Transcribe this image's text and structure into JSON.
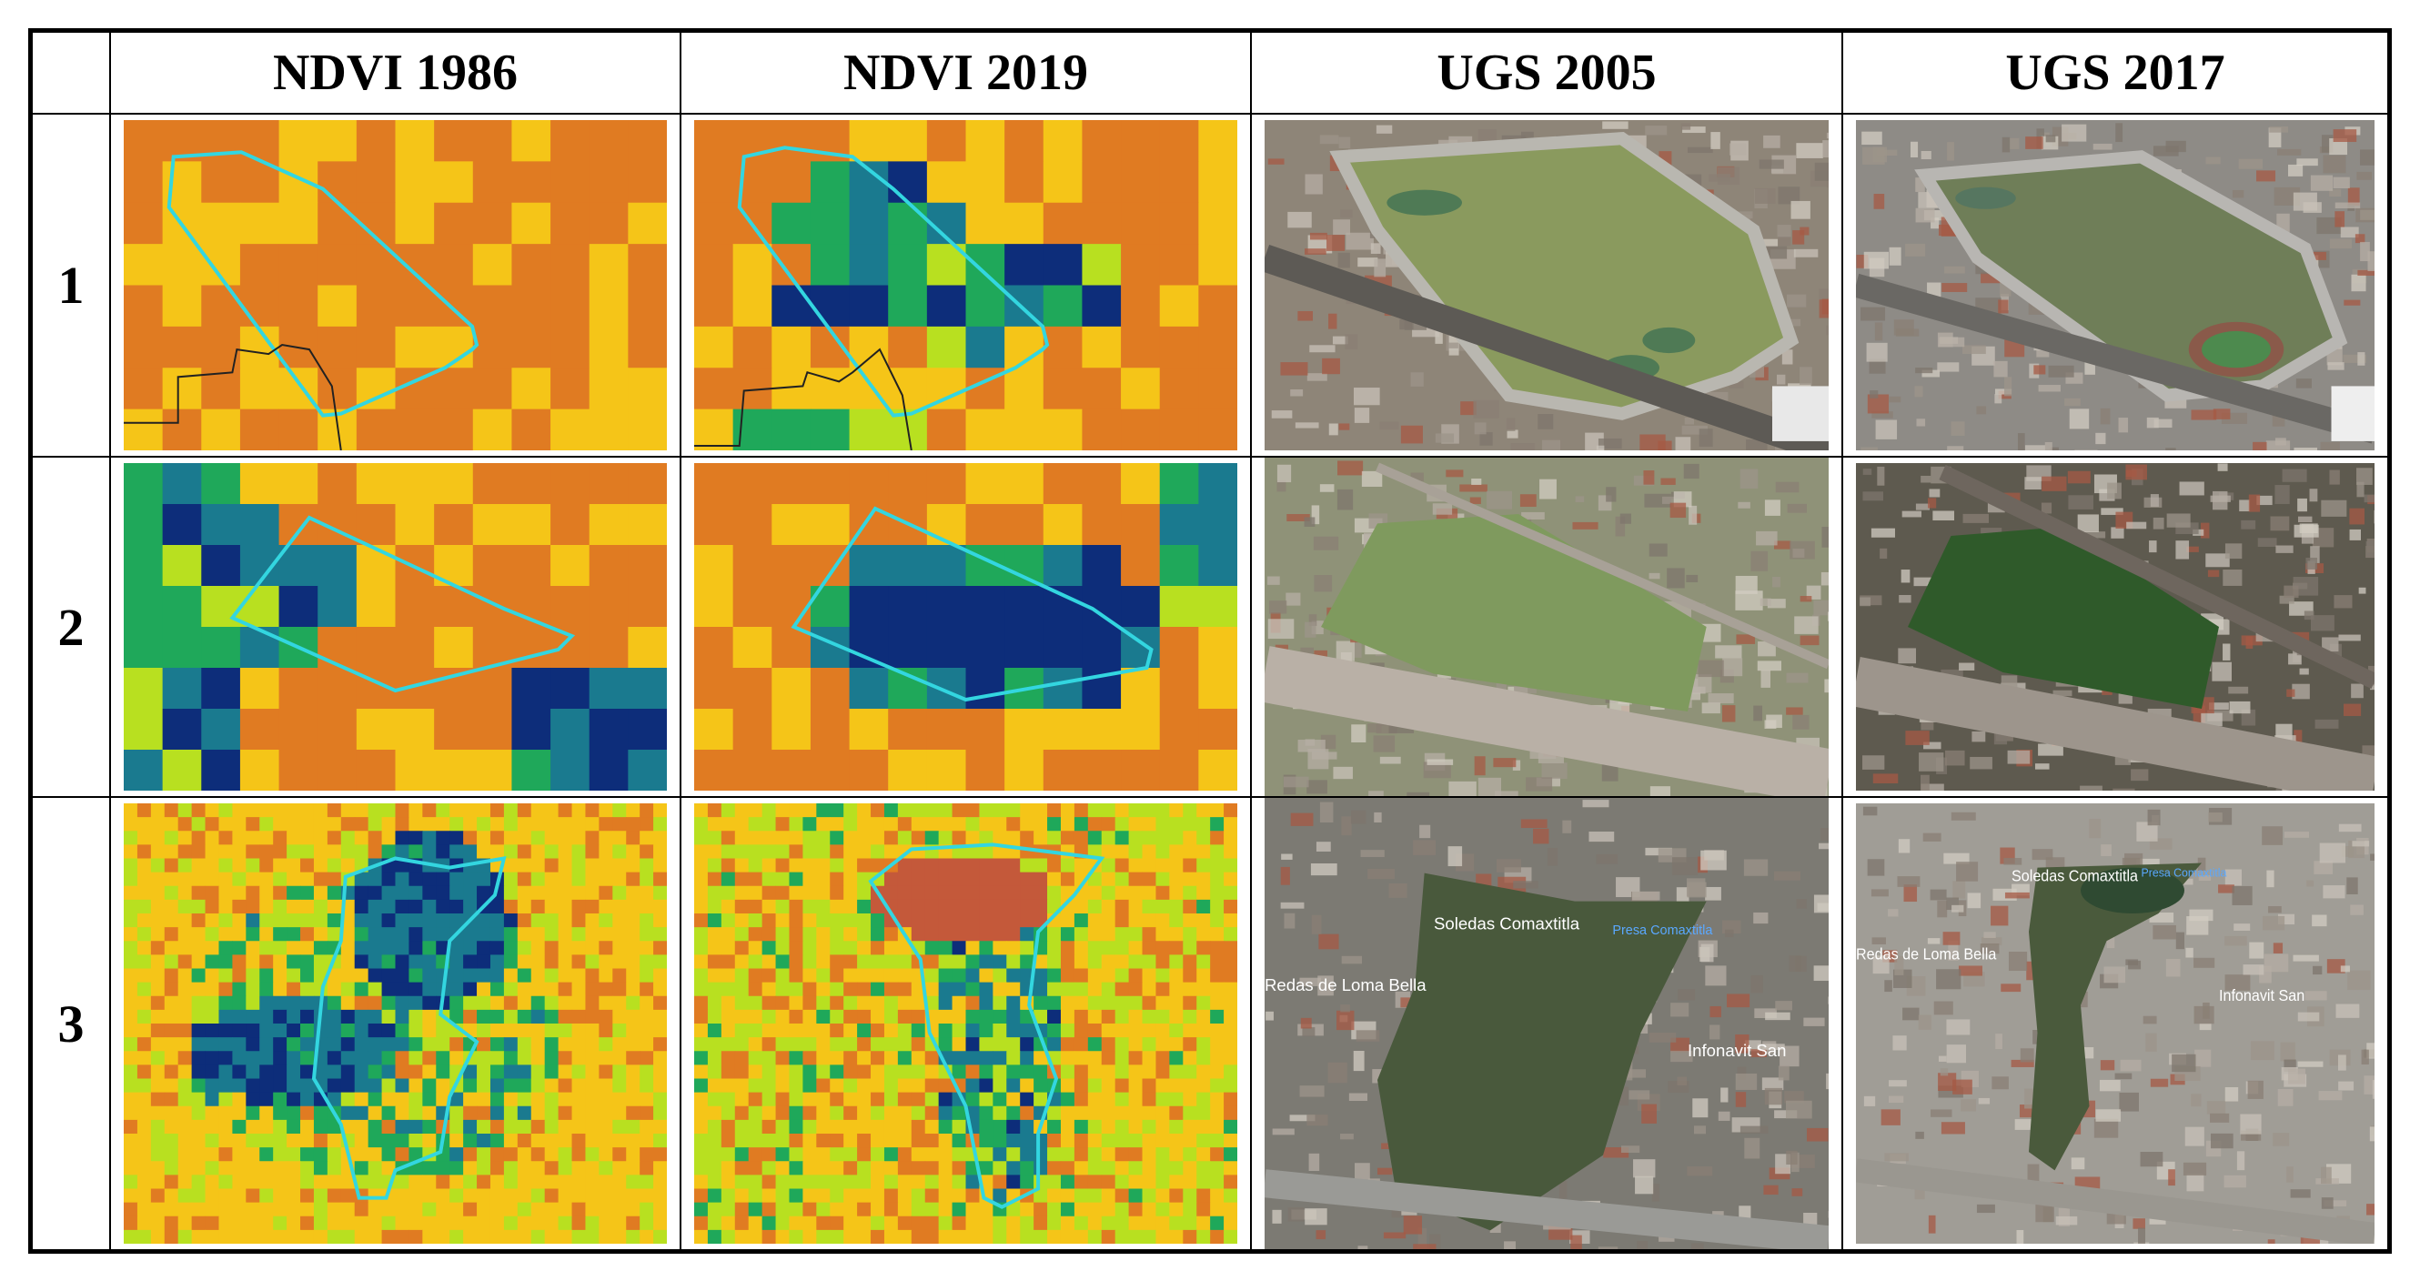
{
  "columns": [
    "NDVI 1986",
    "NDVI 2019",
    "UGS 2005",
    "UGS 2017"
  ],
  "rows": [
    {
      "label": "1",
      "map_labels": []
    },
    {
      "label": "2",
      "map_labels": []
    },
    {
      "label": "3",
      "map_labels": [
        "Soledas Comaxtitla",
        "Presa Comaxtitla",
        "Redas de Loma Bella",
        "Infonavit San"
      ]
    }
  ],
  "colors": {
    "ndvi_low": "#e07b22",
    "ndvi_mid_low": "#f5c518",
    "ndvi_mid": "#b8e020",
    "ndvi_mid_high": "#1fa85a",
    "ndvi_high": "#1a7a8f",
    "ndvi_max": "#0d2d7a",
    "ndvi_bare": "#c4593a",
    "polygon_outline": "#33d6e0",
    "boundary_line": "#222222",
    "border": "#000000"
  }
}
